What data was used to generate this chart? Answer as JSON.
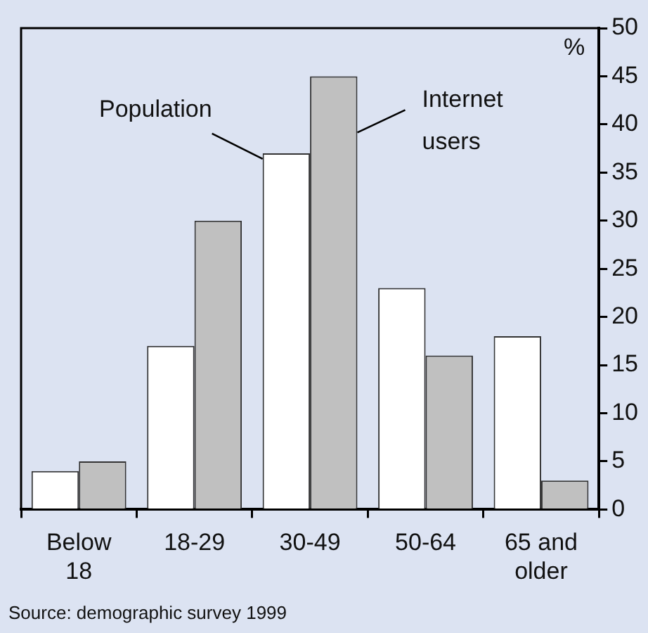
{
  "chart_data": {
    "type": "bar",
    "categories": [
      "Below 18",
      "18-29",
      "30-49",
      "50-64",
      "65 and older"
    ],
    "series": [
      {
        "name": "Population",
        "color": "#ffffff",
        "values": [
          4,
          17,
          37,
          23,
          18
        ]
      },
      {
        "name": "Internet users",
        "color": "#c0c0c0",
        "values": [
          5,
          30,
          45,
          16,
          3
        ]
      }
    ],
    "ylabel": "%",
    "ylim": [
      0,
      50
    ],
    "yticks": [
      0,
      5,
      10,
      15,
      20,
      25,
      30,
      35,
      40,
      45,
      50
    ],
    "grid": false,
    "legend": false,
    "annotations": [
      "Source: demographic survey 1999"
    ]
  }
}
